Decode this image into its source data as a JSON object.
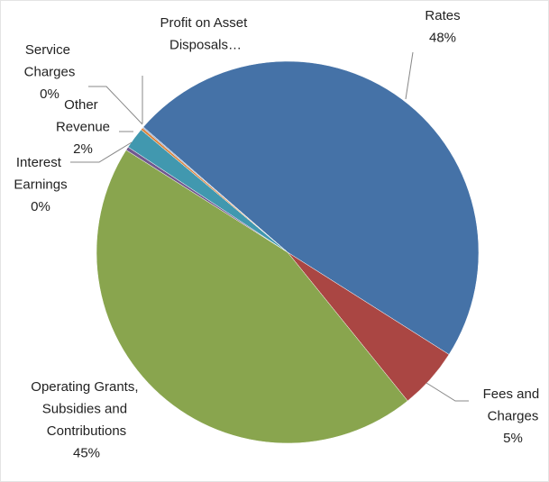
{
  "chart_data": {
    "type": "pie",
    "categories": [
      "Rates",
      "Fees and Charges",
      "Operating Grants, Subsidies and Contributions",
      "Interest Earnings",
      "Other Revenue",
      "Service Charges",
      "Profit on Asset Disposals…"
    ],
    "values": [
      47.6,
      5.2,
      44.8,
      0.3,
      1.8,
      0.2,
      0.1
    ],
    "value_labels": [
      "48%",
      "5%",
      "45%",
      "0%",
      "2%",
      "0%",
      null
    ],
    "colors": [
      "#4572a7",
      "#aa4643",
      "#89a54e",
      "#71588f",
      "#4198af",
      "#db843d",
      "#93a9cf"
    ]
  }
}
